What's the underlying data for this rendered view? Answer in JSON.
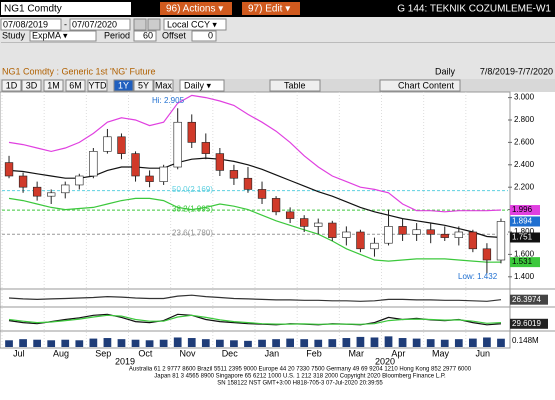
{
  "toolbar": {
    "ticker": "NG1 Comdty",
    "actions": "96) Actions ▾",
    "edit": "97) Edit ▾",
    "function_title": "G 144: TEKNIK COZUMLEME-W1",
    "start_date": "07/08/2019",
    "end_date": "07/07/2020",
    "currency": "Local CCY ▾",
    "study_label": "Study",
    "study": "ExpMA ▾",
    "period_label": "Period",
    "period": "60",
    "offset_label": "Offset",
    "offset": "0",
    "security_desc": "NG1 Comdty : Generic 1st 'NG' Future",
    "frequency": "Daily",
    "date_range": "7/8/2019-7/7/2020",
    "ranges": [
      "1D",
      "3D",
      "1M",
      "6M",
      "YTD",
      "1Y",
      "5Y",
      "Max"
    ],
    "frequency_select": "Daily ▾",
    "table": "Table",
    "chart_content": "Chart Content"
  },
  "chart_data": {
    "type": "candlestick",
    "categories": [
      "Jul",
      null,
      null,
      "Aug",
      null,
      null,
      "Sep",
      null,
      null,
      "Oct",
      null,
      null,
      "Nov",
      null,
      null,
      "Dec",
      null,
      null,
      "Jan",
      null,
      null,
      "Feb",
      null,
      null,
      "Mar",
      null,
      null,
      "Apr",
      null,
      null,
      "May",
      null,
      null,
      "Jun",
      null,
      null
    ],
    "years": [
      "2019",
      "2020"
    ],
    "open": [
      2.42,
      2.3,
      2.2,
      2.12,
      2.15,
      2.22,
      2.3,
      2.52,
      2.65,
      2.5,
      2.3,
      2.25,
      2.38,
      2.78,
      2.6,
      2.5,
      2.35,
      2.28,
      2.18,
      2.1,
      1.98,
      1.92,
      1.85,
      1.88,
      1.75,
      1.8,
      1.65,
      1.7,
      1.85,
      1.78,
      1.82,
      1.78,
      1.75,
      1.8,
      1.65,
      1.55
    ],
    "high": [
      2.48,
      2.33,
      2.25,
      2.18,
      2.25,
      2.32,
      2.55,
      2.72,
      2.68,
      2.52,
      2.35,
      2.4,
      2.905,
      2.85,
      2.68,
      2.55,
      2.4,
      2.38,
      2.25,
      2.12,
      2.02,
      1.95,
      1.92,
      1.9,
      1.85,
      1.82,
      1.75,
      2.0,
      1.92,
      1.88,
      1.88,
      1.85,
      1.85,
      1.82,
      1.7,
      1.92
    ],
    "low": [
      2.28,
      2.15,
      2.08,
      2.05,
      2.1,
      2.18,
      2.28,
      2.5,
      2.45,
      2.25,
      2.2,
      2.22,
      2.36,
      2.55,
      2.45,
      2.3,
      2.22,
      2.15,
      2.05,
      1.95,
      1.88,
      1.8,
      1.78,
      1.72,
      1.68,
      1.62,
      1.58,
      1.68,
      1.72,
      1.72,
      1.7,
      1.72,
      1.68,
      1.62,
      1.432,
      1.52
    ],
    "close": [
      2.3,
      2.2,
      2.12,
      2.15,
      2.22,
      2.3,
      2.52,
      2.65,
      2.5,
      2.3,
      2.25,
      2.38,
      2.78,
      2.6,
      2.5,
      2.35,
      2.28,
      2.18,
      2.1,
      1.98,
      1.92,
      1.85,
      1.88,
      1.75,
      1.8,
      1.65,
      1.7,
      1.85,
      1.78,
      1.82,
      1.78,
      1.75,
      1.8,
      1.65,
      1.55,
      1.894
    ],
    "up_color": "#ffffff",
    "down_color": "#d03a2a",
    "close_color": "#1f6fd0",
    "lines": [
      {
        "color": "#e040e0",
        "values": [
          2.6,
          2.58,
          2.55,
          2.52,
          2.55,
          2.6,
          2.68,
          2.78,
          2.82,
          2.8,
          2.75,
          2.78,
          2.95,
          3.02,
          3.0,
          2.97,
          2.93,
          2.85,
          2.78,
          2.7,
          2.6,
          2.48,
          2.38,
          2.3,
          2.25,
          2.2,
          2.18,
          2.15,
          2.05,
          1.99,
          1.99,
          1.98,
          1.99,
          1.99,
          1.99,
          1.996
        ]
      },
      {
        "color": "#111111",
        "values": [
          2.35,
          2.34,
          2.32,
          2.3,
          2.28,
          2.28,
          2.3,
          2.35,
          2.38,
          2.38,
          2.37,
          2.37,
          2.42,
          2.45,
          2.46,
          2.45,
          2.43,
          2.4,
          2.36,
          2.31,
          2.26,
          2.21,
          2.16,
          2.12,
          2.07,
          2.02,
          1.98,
          1.95,
          1.92,
          1.9,
          1.88,
          1.86,
          1.83,
          1.8,
          1.76,
          1.751
        ]
      },
      {
        "color": "#3cc83c",
        "values": [
          2.1,
          2.08,
          2.05,
          2.02,
          2.0,
          2.01,
          2.02,
          2.05,
          2.08,
          2.1,
          2.1,
          2.08,
          2.02,
          2.0,
          2.02,
          2.05,
          2.03,
          2.0,
          1.95,
          1.9,
          1.86,
          1.82,
          1.78,
          1.72,
          1.65,
          1.6,
          1.55,
          1.54,
          1.55,
          1.56,
          1.56,
          1.56,
          1.55,
          1.54,
          1.53,
          1.531
        ]
      }
    ],
    "fib_levels": [
      {
        "value": 2.169,
        "label": "50.0(2.169)",
        "color": "#5fd0e0"
      },
      {
        "value": 1.995,
        "label": "38.2(1.995)",
        "color": "#3cc83c"
      },
      {
        "value": 1.78,
        "label": "23.6(1.780)",
        "color": "#999999"
      }
    ],
    "annotations": {
      "high": "Hi: 2.905",
      "low": "Low: 1.432"
    },
    "ylim": [
      1.3,
      3.05
    ],
    "yticks": [
      {
        "value": 1.4,
        "label": "1.400"
      },
      {
        "value": 1.6,
        "label": "1.600"
      },
      {
        "value": 1.8,
        "label": "1.800"
      },
      {
        "value": 2.0,
        "label": "2.000"
      },
      {
        "value": 2.2,
        "label": "2.200"
      },
      {
        "value": 2.4,
        "label": "2.400"
      },
      {
        "value": 2.6,
        "label": "2.600"
      },
      {
        "value": 2.8,
        "label": "2.800"
      },
      {
        "value": 3.0,
        "label": "3.000"
      }
    ],
    "panel2": {
      "color": "#333333",
      "ylim": [
        15,
        45
      ],
      "values": [
        30,
        28,
        27,
        28,
        29,
        30,
        31,
        33,
        32,
        30,
        29,
        29,
        34,
        36,
        33,
        31,
        29,
        28,
        27,
        26,
        26,
        25,
        25,
        24,
        24,
        23,
        24,
        27,
        27,
        26,
        26,
        25,
        25,
        24,
        23,
        26.3974
      ]
    },
    "panel3": {
      "ylim": [
        0,
        100
      ],
      "lines": [
        {
          "color": "#111111",
          "values": [
            45,
            35,
            30,
            40,
            50,
            58,
            70,
            75,
            60,
            40,
            35,
            45,
            75,
            70,
            50,
            40,
            35,
            30,
            28,
            25,
            30,
            28,
            25,
            30,
            28,
            25,
            35,
            60,
            50,
            55,
            48,
            45,
            50,
            35,
            25,
            29.6019
          ]
        },
        {
          "color": "#3cc83c",
          "values": [
            50,
            42,
            35,
            38,
            45,
            52,
            62,
            70,
            66,
            50,
            42,
            42,
            62,
            70,
            60,
            48,
            40,
            35,
            30,
            28,
            28,
            29,
            27,
            28,
            28,
            27,
            30,
            45,
            50,
            52,
            50,
            47,
            48,
            42,
            32,
            35
          ]
        }
      ]
    },
    "volume": {
      "color": "#1e3c78",
      "ylim": [
        0,
        0.25
      ],
      "values": [
        0.12,
        0.14,
        0.13,
        0.12,
        0.13,
        0.12,
        0.15,
        0.16,
        0.14,
        0.13,
        0.12,
        0.13,
        0.17,
        0.16,
        0.14,
        0.13,
        0.12,
        0.11,
        0.13,
        0.14,
        0.15,
        0.14,
        0.13,
        0.14,
        0.16,
        0.18,
        0.17,
        0.19,
        0.16,
        0.15,
        0.14,
        0.13,
        0.14,
        0.15,
        0.17,
        0.148
      ],
      "value_labels": [
        null,
        null,
        null,
        null,
        null,
        null,
        null,
        null,
        null,
        null,
        null,
        null,
        null,
        null,
        null,
        null,
        null,
        null,
        null,
        null,
        null,
        null,
        null,
        null,
        null,
        null,
        null,
        null,
        null,
        null,
        null,
        null,
        null,
        null,
        null,
        "0.148M"
      ]
    }
  },
  "footer": [
    "Australia 61 2 9777 8600 Brazil 5511 2395 9000 Europe 44 20 7330 7500 Germany 49 69 9204 1210 Hong Kong 852 2977 6000",
    "Japan 81 3 4565 8900   Singapore 65 6212 1000   U.S. 1 212 318 2000   Copyright 2020 Bloomberg Finance L.P.",
    "SN 158122 NST  GMT+3:00 H818-705-3 07-Jul-2020 20:39:55"
  ]
}
